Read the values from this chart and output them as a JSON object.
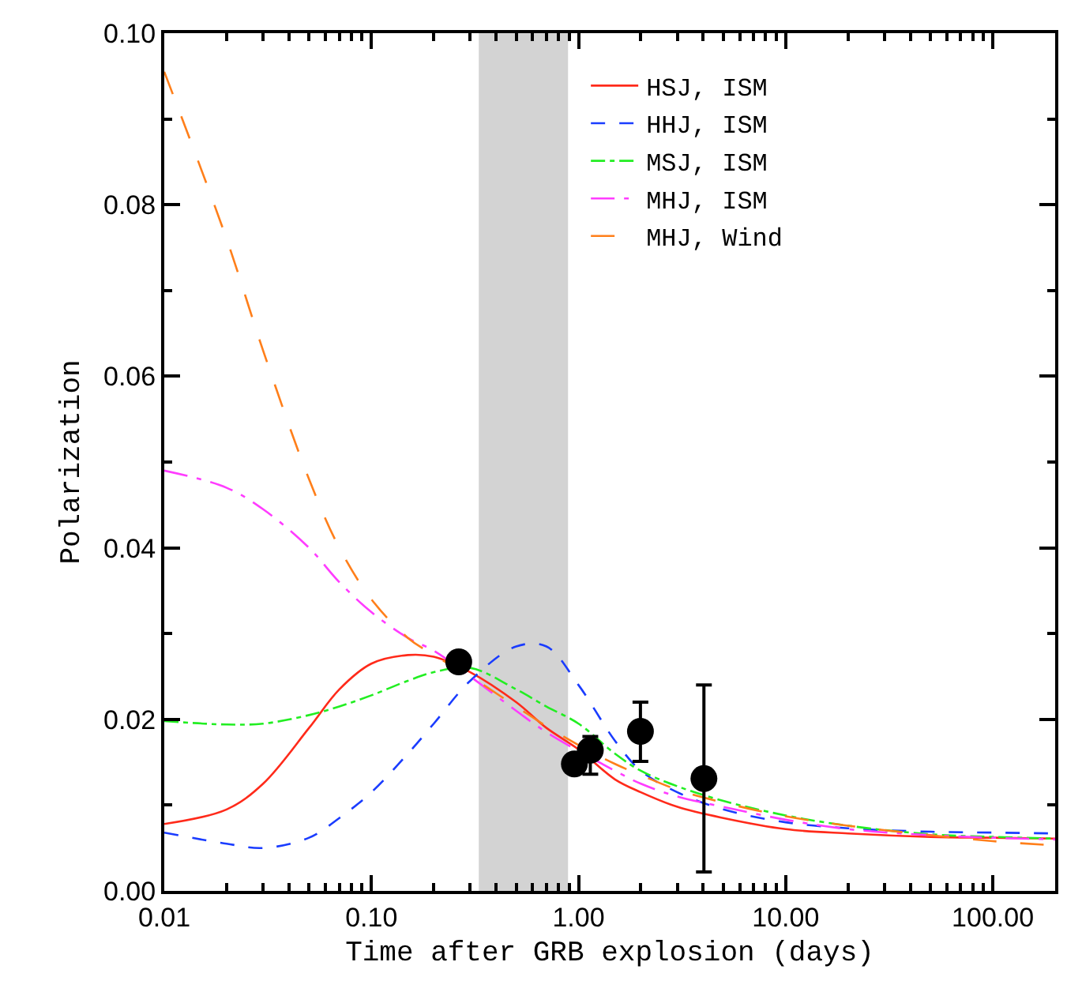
{
  "chart_data": {
    "type": "line",
    "xlabel": "Time after GRB explosion (days)",
    "ylabel": "Polarization",
    "log": "x",
    "xlim": [
      0.01,
      200
    ],
    "ylim": [
      0,
      0.1
    ],
    "xticks": [
      {
        "value": 0.01,
        "label": "0.01"
      },
      {
        "value": 0.1,
        "label": "0.10"
      },
      {
        "value": 1,
        "label": "1.00"
      },
      {
        "value": 10,
        "label": "10.00"
      },
      {
        "value": 100,
        "label": "100.00"
      }
    ],
    "yticks": [
      {
        "value": 0,
        "label": "0.00"
      },
      {
        "value": 0.02,
        "label": "0.02"
      },
      {
        "value": 0.04,
        "label": "0.04"
      },
      {
        "value": 0.06,
        "label": "0.06"
      },
      {
        "value": 0.08,
        "label": "0.08"
      },
      {
        "value": 0.1,
        "label": "0.10"
      }
    ],
    "grid": false,
    "legend": "top right",
    "marker": "none",
    "x": [
      0.01,
      0.02,
      0.03,
      0.05,
      0.07,
      0.1,
      0.15,
      0.2,
      0.3,
      0.5,
      0.7,
      1,
      1.5,
      2,
      3,
      5,
      10,
      20,
      50,
      100,
      200
    ],
    "bands": [
      {
        "axis": "x",
        "from": 0.33,
        "to": 0.89,
        "color": "#d3d3d3"
      }
    ],
    "series": [
      {
        "name": "HSJ, ISM",
        "color": "#ff2a1a",
        "line_style": "solid",
        "values": [
          0.0078,
          0.0095,
          0.0125,
          0.019,
          0.0235,
          0.0265,
          0.0275,
          0.0273,
          0.0255,
          0.022,
          0.019,
          0.0165,
          0.013,
          0.0115,
          0.0098,
          0.0085,
          0.0072,
          0.0067,
          0.0063,
          0.0062,
          0.0061
        ]
      },
      {
        "name": "HHJ, ISM",
        "color": "#1a3cff",
        "line_style": "dashed",
        "values": [
          0.0068,
          0.0055,
          0.005,
          0.0062,
          0.0085,
          0.0115,
          0.016,
          0.0195,
          0.0245,
          0.0285,
          0.0285,
          0.024,
          0.0175,
          0.014,
          0.0115,
          0.0095,
          0.008,
          0.0073,
          0.0069,
          0.0068,
          0.0067
        ]
      },
      {
        "name": "MSJ, ISM",
        "color": "#22ee22",
        "line_style": "dashdot",
        "values": [
          0.0198,
          0.0194,
          0.0195,
          0.0205,
          0.0215,
          0.0228,
          0.0245,
          0.0255,
          0.026,
          0.0235,
          0.0215,
          0.0195,
          0.016,
          0.014,
          0.0122,
          0.0105,
          0.0088,
          0.0076,
          0.0066,
          0.0063,
          0.0061
        ]
      },
      {
        "name": "MHJ, ISM",
        "color": "#ff3cff",
        "line_style": "longdashdot",
        "x": [
          0.01,
          0.02,
          0.03,
          0.05,
          0.07,
          0.1,
          0.15,
          0.2,
          0.3,
          0.5,
          0.7,
          1.5,
          2,
          3,
          5,
          10,
          20,
          50,
          100,
          200
        ],
        "values": [
          0.049,
          0.047,
          0.0445,
          0.04,
          0.036,
          0.0325,
          0.0295,
          0.028,
          0.025,
          0.021,
          0.0185,
          0.014,
          0.0125,
          0.011,
          0.0098,
          0.0083,
          0.0072,
          0.0065,
          0.0062,
          0.006
        ]
      },
      {
        "name": "MHJ, Wind",
        "color": "#ff7f1a",
        "line_style": "longdash",
        "values": [
          0.0955,
          0.076,
          0.063,
          0.048,
          0.04,
          0.034,
          0.0295,
          0.0275,
          0.025,
          0.0215,
          0.0192,
          0.017,
          0.0148,
          0.0135,
          0.0118,
          0.0103,
          0.0087,
          0.0076,
          0.0065,
          0.0058,
          0.0053
        ]
      },
      {
        "type": "scatter",
        "marker": "circle",
        "color": "#000000",
        "x": [
          0.264,
          0.955,
          1.14,
          1.99,
          4.03
        ],
        "values": [
          0.0267,
          0.0148,
          0.0164,
          0.0186,
          0.0131
        ],
        "errors": [
          null,
          null,
          [
            0.0136,
            0.018
          ],
          [
            0.0151,
            0.022
          ],
          [
            0.0022,
            0.024
          ]
        ]
      }
    ]
  }
}
